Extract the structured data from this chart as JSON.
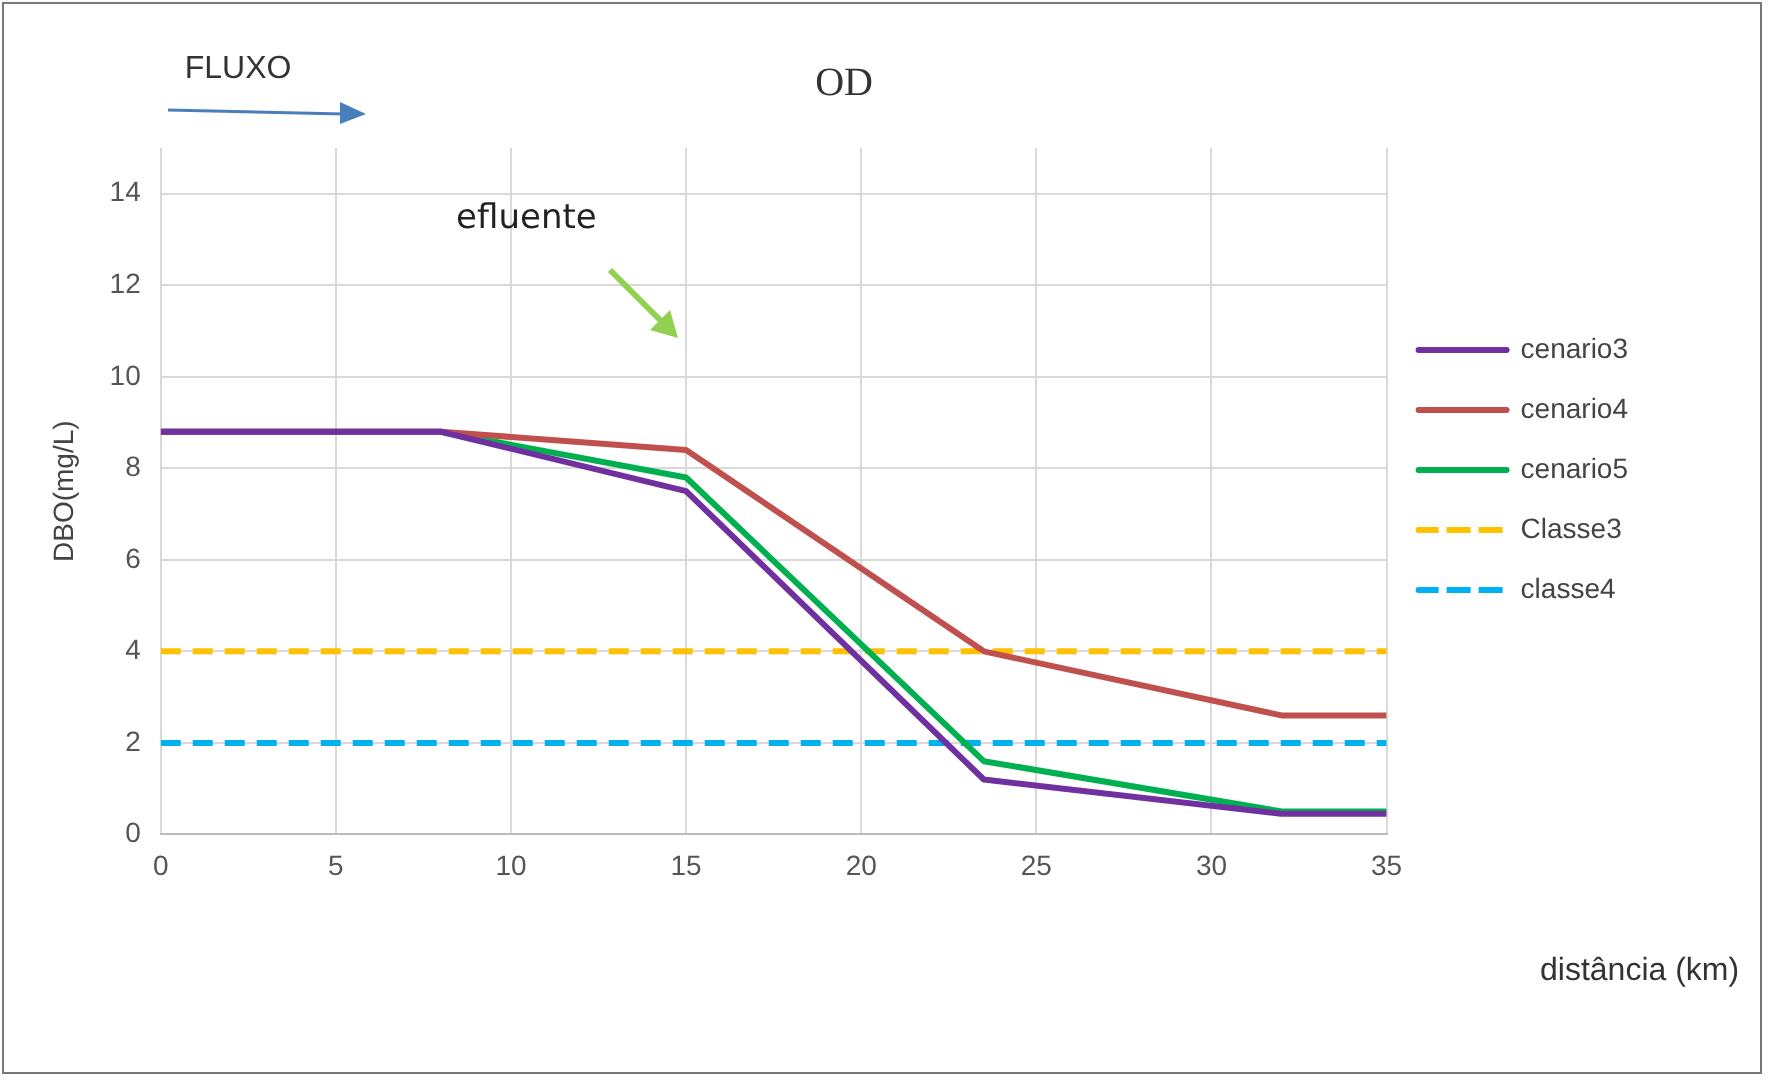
{
  "chart_data": {
    "type": "line",
    "title": "OD",
    "xlabel": "distância (km)",
    "ylabel": "DBO(mg/L)",
    "xlim": [
      0,
      35
    ],
    "xticks": [
      0,
      5,
      10,
      15,
      20,
      25,
      30,
      35
    ],
    "ylim": [
      0,
      15
    ],
    "yticks": [
      0,
      2,
      4,
      6,
      8,
      10,
      12,
      14
    ],
    "grid": true,
    "legend": "right",
    "marker": "none",
    "annotations": [
      {
        "text": "FLUXO"
      },
      "efluente"
    ],
    "series": [
      {
        "name": "cenario3",
        "color": "#7030a0",
        "x": [
          0,
          8,
          15,
          23.5,
          32,
          35
        ],
        "values": [
          8.8,
          8.8,
          7.5,
          1.2,
          0.45,
          0.45
        ]
      },
      {
        "name": "cenario4",
        "color": "#c0504d",
        "x": [
          0,
          8,
          15,
          23.5,
          32,
          35
        ],
        "values": [
          8.8,
          8.8,
          8.4,
          4.0,
          2.6,
          2.6
        ]
      },
      {
        "name": "cenario5",
        "color": "#00b050",
        "x": [
          0,
          8,
          15,
          23.5,
          32,
          35
        ],
        "values": [
          8.8,
          8.8,
          7.8,
          1.6,
          0.5,
          0.5
        ]
      },
      {
        "name": "Classe3",
        "color": "#ffc000",
        "x": [
          0,
          35
        ],
        "values": [
          4,
          4
        ],
        "line_style": "dashed"
      },
      {
        "name": "classe4",
        "color": "#00b0f0",
        "x": [
          0,
          35
        ],
        "values": [
          2,
          2
        ],
        "line_style": "dashed"
      }
    ]
  }
}
